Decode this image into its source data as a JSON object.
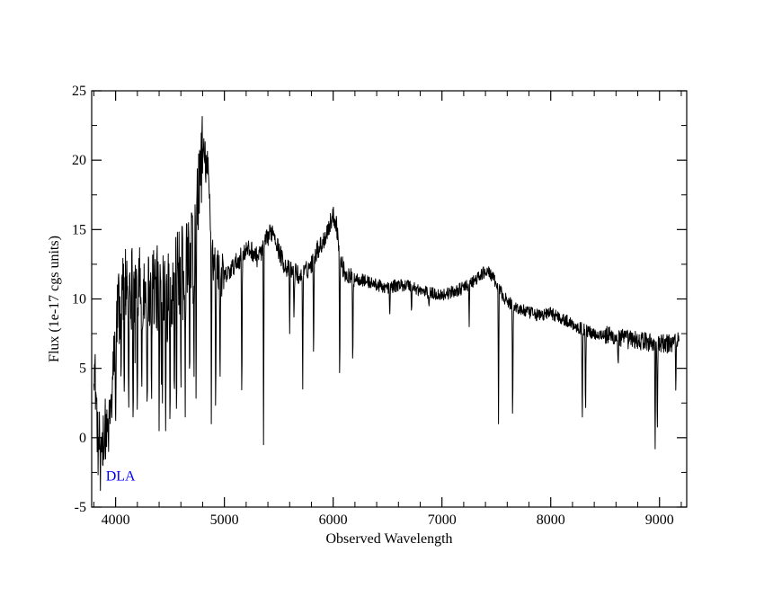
{
  "chart_data": {
    "type": "line",
    "title": "",
    "xlabel": "Observed Wavelength",
    "ylabel": "Flux  (1e-17 cgs units)",
    "xlim": [
      3780,
      9250
    ],
    "ylim": [
      -5,
      25
    ],
    "x_ticks": [
      4000,
      5000,
      6000,
      7000,
      8000,
      9000
    ],
    "y_ticks": [
      -5,
      0,
      5,
      10,
      15,
      20,
      25
    ],
    "x_minor_step": 200,
    "y_minor_step": 2.5,
    "grid": false,
    "legend": "none",
    "line_color": "#000000",
    "annotations": [
      {
        "text": "DLA",
        "x": 3910,
        "y": -2.7,
        "color": "#0000ff"
      }
    ],
    "series": [
      {
        "x": [
          3800,
          3820,
          3840,
          3860,
          3880,
          3900,
          3920,
          3940,
          3960,
          3980,
          4000,
          4050,
          4100,
          4150,
          4200,
          4250,
          4300,
          4350,
          4400,
          4450,
          4500,
          4550,
          4600,
          4650,
          4700,
          4750,
          4780,
          4800,
          4820,
          4850,
          4880,
          4900,
          4950,
          5000,
          5050,
          5100,
          5150,
          5200,
          5250,
          5300,
          5350,
          5400,
          5450,
          5500,
          5550,
          5600,
          5650,
          5700,
          5750,
          5800,
          5850,
          5900,
          5950,
          6000,
          6030,
          6060,
          6100,
          6150,
          6200,
          6300,
          6400,
          6500,
          6600,
          6700,
          6800,
          6900,
          7000,
          7100,
          7200,
          7300,
          7400,
          7450,
          7500,
          7600,
          7700,
          7800,
          7900,
          8000,
          8100,
          8200,
          8300,
          8400,
          8500,
          8600,
          8700,
          8800,
          8900,
          9000,
          9100,
          9180
        ],
        "y": [
          6,
          3,
          -1,
          0.5,
          -0.5,
          1,
          0,
          1.5,
          2,
          5,
          8,
          10,
          11,
          11,
          10.5,
          11,
          10.5,
          11,
          10.5,
          11.5,
          11,
          11.5,
          12,
          12.5,
          14,
          17,
          19.5,
          20.5,
          20,
          19,
          15,
          12.5,
          12,
          11.5,
          12,
          12.5,
          13,
          13.5,
          13.5,
          13,
          13.5,
          14.5,
          15,
          13.5,
          12.5,
          12,
          12,
          11.5,
          12,
          12.5,
          13.5,
          14,
          15,
          16,
          15.5,
          13,
          12,
          11.5,
          11.5,
          11.3,
          11,
          10.8,
          11,
          11,
          10.6,
          10.4,
          10.3,
          10.5,
          10.8,
          11.3,
          12,
          11.8,
          11,
          9.8,
          9.3,
          9,
          8.8,
          9,
          8.6,
          8.2,
          7.8,
          7.5,
          7.4,
          7.2,
          7.1,
          7,
          6.9,
          6.7,
          6.8,
          7.2
        ],
        "absorption_lines": [
          [
            3860,
            -3.8
          ],
          [
            3895,
            -1.5
          ],
          [
            3935,
            -1
          ],
          [
            4000,
            -0.5
          ],
          [
            4050,
            3.5
          ],
          [
            4080,
            2.5
          ],
          [
            4120,
            0.5
          ],
          [
            4160,
            1.5
          ],
          [
            4200,
            0.5
          ],
          [
            4240,
            2
          ],
          [
            4290,
            1.2
          ],
          [
            4330,
            1.8
          ],
          [
            4400,
            0.5
          ],
          [
            4430,
            2.5
          ],
          [
            4460,
            0.5
          ],
          [
            4500,
            -0.3
          ],
          [
            4540,
            1.8
          ],
          [
            4560,
            0.5
          ],
          [
            4600,
            2.5
          ],
          [
            4640,
            1.5
          ],
          [
            4680,
            3
          ],
          [
            4720,
            2
          ],
          [
            4740,
            0.5
          ],
          [
            4880,
            1
          ],
          [
            4920,
            0.5
          ],
          [
            4960,
            3
          ],
          [
            5160,
            1.5
          ],
          [
            5360,
            -0.5
          ],
          [
            5600,
            7.5
          ],
          [
            5640,
            8
          ],
          [
            5720,
            3.5
          ],
          [
            5820,
            5
          ],
          [
            6060,
            3
          ],
          [
            6180,
            4.5
          ],
          [
            6520,
            8.5
          ],
          [
            6720,
            8.8
          ],
          [
            6880,
            9.3
          ],
          [
            7250,
            8
          ],
          [
            7520,
            1
          ],
          [
            7650,
            0.2
          ],
          [
            8290,
            0.3
          ],
          [
            8320,
            1
          ],
          [
            8620,
            5
          ],
          [
            8960,
            -0.8
          ],
          [
            8980,
            -0.5
          ],
          [
            9150,
            2.8
          ]
        ]
      }
    ]
  }
}
